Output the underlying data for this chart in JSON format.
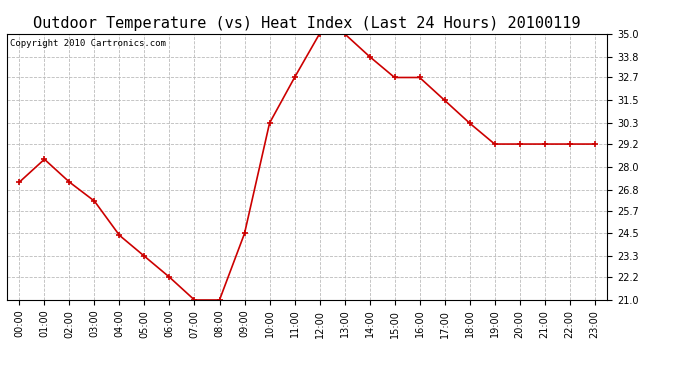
{
  "title": "Outdoor Temperature (vs) Heat Index (Last 24 Hours) 20100119",
  "copyright_text": "Copyright 2010 Cartronics.com",
  "hours": [
    "00:00",
    "01:00",
    "02:00",
    "03:00",
    "04:00",
    "05:00",
    "06:00",
    "07:00",
    "08:00",
    "09:00",
    "10:00",
    "11:00",
    "12:00",
    "13:00",
    "14:00",
    "15:00",
    "16:00",
    "17:00",
    "18:00",
    "19:00",
    "20:00",
    "21:00",
    "22:00",
    "23:00"
  ],
  "values": [
    27.2,
    28.4,
    27.2,
    26.2,
    24.4,
    23.3,
    22.2,
    21.0,
    21.0,
    24.5,
    30.3,
    32.7,
    35.0,
    35.0,
    33.8,
    32.7,
    32.7,
    31.5,
    30.3,
    29.2,
    29.2,
    29.2,
    29.2,
    29.2
  ],
  "ylim": [
    21.0,
    35.0
  ],
  "yticks": [
    21.0,
    22.2,
    23.3,
    24.5,
    25.7,
    26.8,
    28.0,
    29.2,
    30.3,
    31.5,
    32.7,
    33.8,
    35.0
  ],
  "line_color": "#cc0000",
  "marker_color": "#cc0000",
  "bg_color": "#ffffff",
  "grid_color": "#bbbbbb",
  "title_fontsize": 11,
  "tick_fontsize": 7,
  "copyright_fontsize": 6.5
}
